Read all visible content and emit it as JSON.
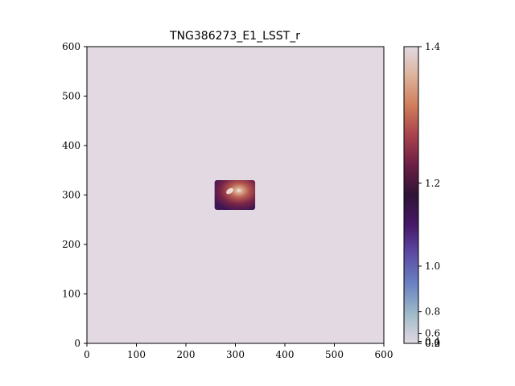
{
  "chart_data": {
    "type": "heatmap",
    "title": "TNG386273_E1_LSST_r",
    "xlabel": "",
    "ylabel": "",
    "xlim": [
      0,
      600
    ],
    "ylim": [
      0,
      600
    ],
    "x_ticks": [
      "0",
      "100",
      "200",
      "300",
      "400",
      "500",
      "600"
    ],
    "y_ticks": [
      "0",
      "100",
      "200",
      "300",
      "400",
      "500",
      "600"
    ],
    "x_tick_values": [
      0,
      100,
      200,
      300,
      400,
      500,
      600
    ],
    "y_tick_values": [
      0,
      100,
      200,
      300,
      400,
      500,
      600
    ],
    "background_color": "#e2d9e2",
    "colormap": "twilight",
    "image_patch": {
      "x_range": [
        258,
        340
      ],
      "y_range": [
        270,
        330
      ],
      "bright_core": [
        305,
        308
      ]
    },
    "colorbar": {
      "scale": "nonlinear",
      "range": [
        0.0,
        1.4
      ],
      "ticks": [
        "1.4",
        "1.2",
        "1.0",
        "0.8",
        "0.6",
        "0.4",
        "0.2",
        "0.0"
      ],
      "tick_values": [
        1.4,
        1.2,
        1.0,
        0.8,
        0.6,
        0.4,
        0.2,
        0.0
      ],
      "colors": [
        "#e2d9e2",
        "#9ebac8",
        "#6a82c2",
        "#5d4ca6",
        "#471868",
        "#2f1436",
        "#6b1f45",
        "#a8424d",
        "#cf7c5a",
        "#ddb29a",
        "#e2d9e2"
      ]
    },
    "grid": false
  }
}
